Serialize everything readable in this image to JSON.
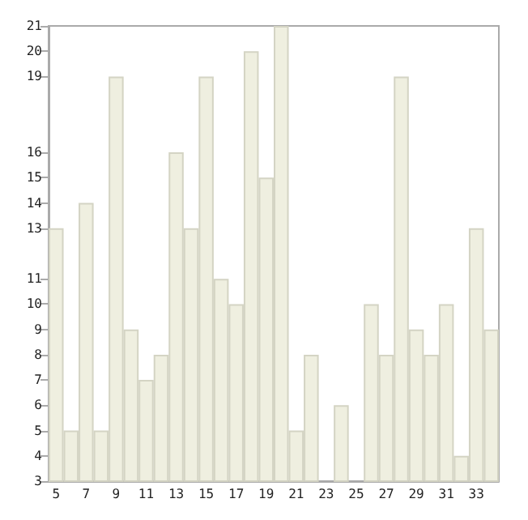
{
  "chart_data": {
    "type": "bar",
    "categories": [
      "5",
      null,
      "7",
      null,
      "9",
      null,
      "11",
      null,
      "13",
      null,
      "15",
      null,
      "17",
      null,
      "19",
      null,
      "21",
      null,
      "23",
      null,
      "25",
      null,
      "27",
      null,
      "29",
      null,
      "31",
      null,
      "33",
      null
    ],
    "values": [
      13,
      5,
      14,
      5,
      19,
      9,
      7,
      8,
      16,
      13,
      19,
      11,
      10,
      20,
      15,
      21,
      5,
      8,
      3,
      6,
      3,
      10,
      8,
      19,
      9,
      8,
      10,
      4,
      13,
      9
    ],
    "color": "#efefe0",
    "ylim": [
      3,
      21
    ],
    "yticks": [
      3,
      4,
      5,
      6,
      7,
      8,
      9,
      10,
      11,
      13,
      14,
      15,
      16,
      19,
      20,
      21
    ],
    "grid": false
  }
}
